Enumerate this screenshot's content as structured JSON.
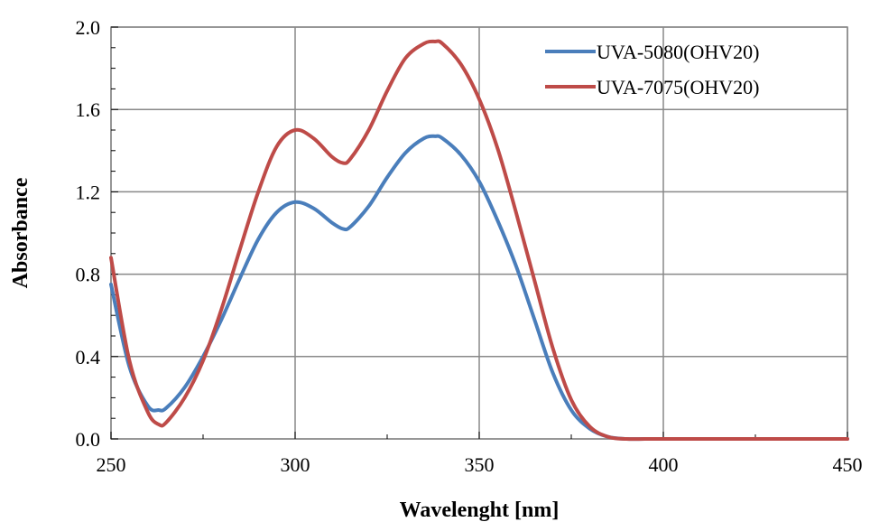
{
  "chart_data": {
    "type": "line",
    "title": "",
    "xlabel": "Wavelenght [nm]",
    "ylabel": "Absorbance",
    "xlim": [
      250,
      450
    ],
    "ylim": [
      0,
      2.0
    ],
    "x_ticks": [
      250,
      300,
      350,
      400,
      450
    ],
    "x_tick_labels": [
      "250",
      "300",
      "350",
      "400",
      "450"
    ],
    "y_ticks": [
      0,
      0.4,
      0.8,
      1.2,
      1.6,
      2.0
    ],
    "y_tick_labels": [
      "0.0",
      "0.4",
      "0.8",
      "1.2",
      "1.6",
      "2.0"
    ],
    "grid": true,
    "legend_position": "top-right",
    "x": [
      250,
      255,
      260,
      263,
      265,
      270,
      275,
      280,
      285,
      290,
      295,
      300,
      305,
      310,
      313,
      315,
      320,
      325,
      330,
      335,
      338,
      340,
      345,
      350,
      355,
      360,
      365,
      370,
      375,
      380,
      385,
      390,
      395,
      400,
      410,
      420,
      430,
      440,
      450
    ],
    "series": [
      {
        "name": "UVA-5080(OHV20)",
        "color": "#4a7ebb",
        "values": [
          0.75,
          0.35,
          0.16,
          0.14,
          0.15,
          0.25,
          0.4,
          0.58,
          0.78,
          0.97,
          1.1,
          1.15,
          1.12,
          1.05,
          1.02,
          1.03,
          1.13,
          1.27,
          1.39,
          1.46,
          1.47,
          1.46,
          1.38,
          1.25,
          1.06,
          0.84,
          0.58,
          0.32,
          0.14,
          0.05,
          0.01,
          0.0,
          0.0,
          0.0,
          0.0,
          0.0,
          0.0,
          0.0,
          0.0
        ]
      },
      {
        "name": "UVA-7075(OHV20)",
        "color": "#be4b48",
        "values": [
          0.88,
          0.38,
          0.13,
          0.07,
          0.08,
          0.2,
          0.38,
          0.63,
          0.92,
          1.2,
          1.42,
          1.5,
          1.46,
          1.37,
          1.34,
          1.36,
          1.5,
          1.69,
          1.85,
          1.92,
          1.93,
          1.92,
          1.82,
          1.65,
          1.41,
          1.1,
          0.77,
          0.44,
          0.19,
          0.06,
          0.01,
          0.0,
          0.0,
          0.0,
          0.0,
          0.0,
          0.0,
          0.0,
          0.0
        ]
      }
    ]
  }
}
